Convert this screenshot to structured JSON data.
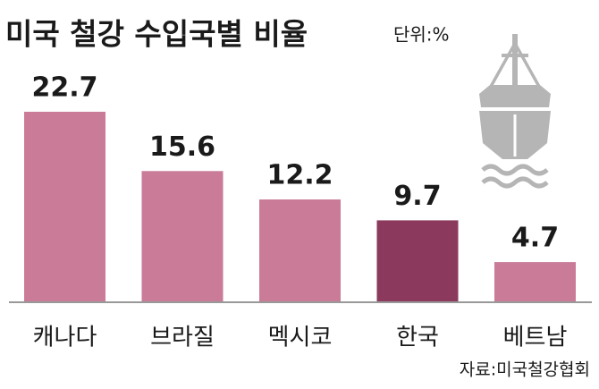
{
  "chart_data": {
    "type": "bar",
    "title": "미국 철강 수입국별 비율",
    "subtitle": "단위:%",
    "categories": [
      "캐나다",
      "브라질",
      "멕시코",
      "한국",
      "베트남"
    ],
    "values": [
      22.7,
      15.6,
      12.2,
      9.7,
      4.7
    ],
    "colors": [
      "#c97b98",
      "#c97b98",
      "#c97b98",
      "#8b3a5d",
      "#c97b98"
    ],
    "source": "자료:미국철강협회"
  }
}
